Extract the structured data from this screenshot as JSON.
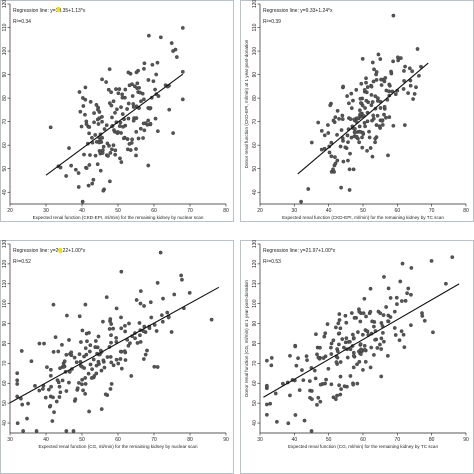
{
  "chart_data": [
    {
      "type": "scatter",
      "title": "",
      "xlabel": "Expected renal function (CKD-EPI, ml/min) for the remaining kidney by nuclear scan",
      "ylabel": "",
      "xlim": [
        20,
        80
      ],
      "ylim": [
        35,
        120
      ],
      "xticks": [
        20,
        30,
        40,
        50,
        60,
        70,
        80
      ],
      "yticks": [
        40,
        50,
        60,
        70,
        80,
        90,
        100,
        110,
        120
      ],
      "annotation_lines": [
        "Regression line: y=13.35+1.13*x",
        "R²=0.34"
      ],
      "regression": {
        "intercept": 13.35,
        "slope": 1.13,
        "x_range": [
          30,
          68
        ]
      },
      "grid": false,
      "seed": 11,
      "n_points": 190,
      "x_dist": [
        50,
        7,
        30,
        68
      ],
      "resid_sd": 11
    },
    {
      "type": "scatter",
      "title": "",
      "xlabel": "Expected renal function (CKD-EPI, ml/min) for the remaining kidney by TC scan",
      "ylabel": "Donor renal function (CKD-EPI, ml/min) at 1 year post-donation",
      "xlim": [
        20,
        80
      ],
      "ylim": [
        35,
        120
      ],
      "xticks": [
        20,
        30,
        40,
        50,
        60,
        70,
        80
      ],
      "yticks": [
        40,
        50,
        60,
        70,
        80,
        90,
        100,
        110,
        120
      ],
      "annotation_lines": [
        "Regression line: y=9.33+1.24*x",
        "R²=0.39"
      ],
      "regression": {
        "intercept": 9.33,
        "slope": 1.24,
        "x_range": [
          31,
          69
        ]
      },
      "grid": false,
      "seed": 23,
      "n_points": 190,
      "x_dist": [
        50,
        7,
        31,
        69
      ],
      "resid_sd": 10
    },
    {
      "type": "scatter",
      "title": "",
      "xlabel": "Expected renal function (CG, ml/min) for the remaining kidney by nuclear scan",
      "ylabel": "",
      "xlim": [
        30,
        90
      ],
      "ylim": [
        35,
        130
      ],
      "xticks": [
        30,
        40,
        50,
        60,
        70,
        80,
        90
      ],
      "yticks": [
        40,
        50,
        60,
        70,
        80,
        90,
        100,
        110,
        120,
        130
      ],
      "annotation_lines": [
        "Regression line: y=20.22+1.00*x",
        "R²=0.52"
      ],
      "regression": {
        "intercept": 20.22,
        "slope": 1.0,
        "x_range": [
          30,
          88
        ]
      },
      "grid": false,
      "seed": 37,
      "n_points": 200,
      "x_dist": [
        55,
        11,
        32,
        86
      ],
      "resid_sd": 12
    },
    {
      "type": "scatter",
      "title": "",
      "xlabel": "Expected renal function (CG, ml/min) for the remaining kidney by TC scan",
      "ylabel": "Donor renal function (CG, ml/min) at 1 year post-donation",
      "xlim": [
        30,
        90
      ],
      "ylim": [
        35,
        130
      ],
      "xticks": [
        30,
        40,
        50,
        60,
        70,
        80,
        90
      ],
      "yticks": [
        40,
        50,
        60,
        70,
        80,
        90,
        100,
        110,
        120,
        130
      ],
      "annotation_lines": [
        "Regression line: y=21.97+1.00*x",
        "R²=0.53"
      ],
      "regression": {
        "intercept": 21.97,
        "slope": 1.0,
        "x_range": [
          31,
          88
        ]
      },
      "grid": false,
      "seed": 53,
      "n_points": 200,
      "x_dist": [
        55,
        11,
        32,
        86
      ],
      "resid_sd": 11
    }
  ]
}
